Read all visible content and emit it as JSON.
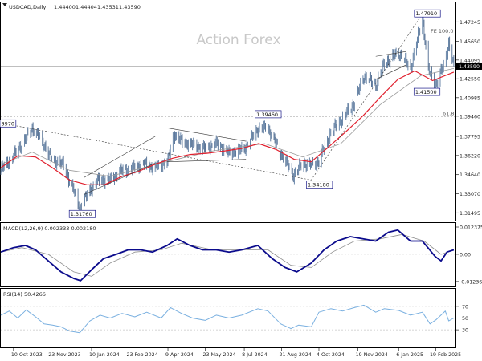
{
  "header": {
    "symbol_line": "USDCAD,Daily",
    "ohlc": [
      "1.44400",
      "1.44404",
      "1.43531",
      "1.43590"
    ]
  },
  "watermark": "Action Forex",
  "colors": {
    "bull_bar": "#5a7aa0",
    "bear_bar": "#4d6a8f",
    "sma": "#e0202e",
    "macd": "#0b0b8c",
    "signal": "#8f8f8f",
    "rsi": "#7ab0e0",
    "frame": "#000000",
    "box_border": "#1a1a8a",
    "price_tag": "#000000"
  },
  "chart_data": [
    {
      "type": "candlestick",
      "title": "USDCAD,Daily",
      "ylim": [
        1.3085,
        1.4885
      ],
      "y_ticks": [
        "1.47245",
        "1.45650",
        "1.44095",
        "1.42550",
        "1.40985",
        "1.39460",
        "1.37795",
        "1.36220",
        "1.34640",
        "1.33070",
        "1.31495"
      ],
      "current_price": "1.43590",
      "x_ticks": [
        "10 Oct 2023",
        "23 Nov 2023",
        "10 Jan 2024",
        "23 Feb 2024",
        "9 Apr 2024",
        "23 May 2024",
        "8 Jul 2024",
        "21 Aug 2024",
        "4 Oct 2024",
        "19 Nov 2024",
        "6 Jan 2025",
        "19 Feb 2025"
      ],
      "x_range": [
        "2023-09-25",
        "2025-03-14"
      ],
      "moving_average_red": [
        [
          "2023-09-25",
          1.352
        ],
        [
          "2023-10-15",
          1.362
        ],
        [
          "2023-11-05",
          1.361
        ],
        [
          "2023-11-25",
          1.352
        ],
        [
          "2023-12-15",
          1.342
        ],
        [
          "2024-01-05",
          1.338
        ],
        [
          "2024-01-25",
          1.338
        ],
        [
          "2024-02-15",
          1.345
        ],
        [
          "2024-03-05",
          1.349
        ],
        [
          "2024-03-25",
          1.355
        ],
        [
          "2024-04-15",
          1.36
        ],
        [
          "2024-05-05",
          1.363
        ],
        [
          "2024-05-25",
          1.364
        ],
        [
          "2024-06-15",
          1.366
        ],
        [
          "2024-07-05",
          1.368
        ],
        [
          "2024-07-25",
          1.372
        ],
        [
          "2024-08-15",
          1.367
        ],
        [
          "2024-09-05",
          1.359
        ],
        [
          "2024-09-25",
          1.357
        ],
        [
          "2024-10-15",
          1.369
        ],
        [
          "2024-11-05",
          1.382
        ],
        [
          "2024-11-25",
          1.395
        ],
        [
          "2024-12-15",
          1.41
        ],
        [
          "2025-01-05",
          1.425
        ],
        [
          "2025-01-25",
          1.432
        ],
        [
          "2025-02-15",
          1.424
        ],
        [
          "2025-03-12",
          1.431
        ]
      ],
      "path_close": [
        [
          "2023-09-25",
          1.35
        ],
        [
          "2023-10-10",
          1.362
        ],
        [
          "2023-10-24",
          1.376
        ],
        [
          "2023-11-01",
          1.385
        ],
        [
          "2023-11-15",
          1.371
        ],
        [
          "2023-11-23",
          1.36
        ],
        [
          "2023-12-07",
          1.355
        ],
        [
          "2023-12-19",
          1.335
        ],
        [
          "2023-12-27",
          1.318
        ],
        [
          "2024-01-08",
          1.334
        ],
        [
          "2024-01-18",
          1.342
        ],
        [
          "2024-02-01",
          1.342
        ],
        [
          "2024-02-12",
          1.349
        ],
        [
          "2024-02-28",
          1.352
        ],
        [
          "2024-03-12",
          1.355
        ],
        [
          "2024-03-25",
          1.352
        ],
        [
          "2024-04-09",
          1.358
        ],
        [
          "2024-04-16",
          1.38
        ],
        [
          "2024-04-25",
          1.374
        ],
        [
          "2024-05-08",
          1.371
        ],
        [
          "2024-05-23",
          1.368
        ],
        [
          "2024-06-05",
          1.372
        ],
        [
          "2024-06-20",
          1.364
        ],
        [
          "2024-07-08",
          1.368
        ],
        [
          "2024-07-24",
          1.384
        ],
        [
          "2024-08-05",
          1.385
        ],
        [
          "2024-08-20",
          1.364
        ],
        [
          "2024-09-04",
          1.346
        ],
        [
          "2024-09-15",
          1.356
        ],
        [
          "2024-09-25",
          1.354
        ],
        [
          "2024-10-04",
          1.358
        ],
        [
          "2024-10-18",
          1.381
        ],
        [
          "2024-11-01",
          1.393
        ],
        [
          "2024-11-15",
          1.406
        ],
        [
          "2024-11-26",
          1.428
        ],
        [
          "2024-12-10",
          1.42
        ],
        [
          "2024-12-20",
          1.438
        ],
        [
          "2025-01-06",
          1.447
        ],
        [
          "2025-01-20",
          1.434
        ],
        [
          "2025-02-03",
          1.476
        ],
        [
          "2025-02-10",
          1.433
        ],
        [
          "2025-02-19",
          1.421
        ],
        [
          "2025-02-28",
          1.436
        ],
        [
          "2025-03-06",
          1.455
        ],
        [
          "2025-03-12",
          1.436
        ]
      ],
      "moving_average_gray": [
        [
          "2023-09-25",
          1.355
        ],
        [
          "2023-11-01",
          1.365
        ],
        [
          "2023-12-15",
          1.35
        ],
        [
          "2024-02-01",
          1.345
        ],
        [
          "2024-04-01",
          1.356
        ],
        [
          "2024-06-01",
          1.366
        ],
        [
          "2024-08-01",
          1.372
        ],
        [
          "2024-09-15",
          1.361
        ],
        [
          "2024-10-30",
          1.372
        ],
        [
          "2024-12-15",
          1.404
        ],
        [
          "2025-02-01",
          1.428
        ],
        [
          "2025-03-12",
          1.434
        ]
      ],
      "annotations": [
        {
          "label": "1.47910",
          "date": "2025-02-03",
          "price": 1.4791
        },
        {
          "label": "1.41500",
          "date": "2025-02-12",
          "price": 1.415
        },
        {
          "label": "1.39460",
          "date": "2024-08-05",
          "price": 1.3946
        },
        {
          "label": "1.34180",
          "date": "2024-09-25",
          "price": 1.3418
        },
        {
          "label": "1.31760",
          "date": "2023-12-27",
          "price": 1.3176
        },
        {
          "label": "3970",
          "date": "2023-09-25",
          "price": 1.3897
        },
        {
          "label": "FE 100.0",
          "date": "2025-02-28",
          "price": 1.4625
        },
        {
          "label": "61.8",
          "date": "2025-02-28",
          "price": 1.3946
        }
      ],
      "guide_lines": {
        "fib_618_price": 1.3946,
        "left_dashed_price": 1.3897,
        "fe_100_price": 1.4625
      }
    },
    {
      "type": "line",
      "title": "MACD(12,26,9) 0.002333 0.002180",
      "ylim": [
        -0.0146,
        0.0142
      ],
      "y_ticks": [
        "0.012375",
        "0.00",
        "-0.012367"
      ],
      "series": [
        {
          "name": "MACD",
          "values": [
            [
              "2023-09-25",
              0.001
            ],
            [
              "2023-10-10",
              0.003
            ],
            [
              "2023-10-24",
              0.004
            ],
            [
              "2023-11-05",
              0.002
            ],
            [
              "2023-11-20",
              -0.003
            ],
            [
              "2023-12-05",
              -0.008
            ],
            [
              "2023-12-20",
              -0.011
            ],
            [
              "2023-12-28",
              -0.012
            ],
            [
              "2024-01-10",
              -0.007
            ],
            [
              "2024-01-24",
              -0.002
            ],
            [
              "2024-02-08",
              0.0
            ],
            [
              "2024-02-22",
              0.002
            ],
            [
              "2024-03-08",
              0.002
            ],
            [
              "2024-03-22",
              0.001
            ],
            [
              "2024-04-08",
              0.004
            ],
            [
              "2024-04-20",
              0.007
            ],
            [
              "2024-05-05",
              0.004
            ],
            [
              "2024-05-20",
              0.002
            ],
            [
              "2024-06-05",
              0.002
            ],
            [
              "2024-06-20",
              0.001
            ],
            [
              "2024-07-05",
              0.002
            ],
            [
              "2024-07-24",
              0.004
            ],
            [
              "2024-08-10",
              -0.002
            ],
            [
              "2024-08-25",
              -0.006
            ],
            [
              "2024-09-08",
              -0.008
            ],
            [
              "2024-09-25",
              -0.004
            ],
            [
              "2024-10-10",
              0.002
            ],
            [
              "2024-10-25",
              0.006
            ],
            [
              "2024-11-10",
              0.008
            ],
            [
              "2024-11-25",
              0.007
            ],
            [
              "2024-12-10",
              0.006
            ],
            [
              "2024-12-25",
              0.01
            ],
            [
              "2025-01-05",
              0.011
            ],
            [
              "2025-01-20",
              0.006
            ],
            [
              "2025-02-03",
              0.006
            ],
            [
              "2025-02-18",
              -0.001
            ],
            [
              "2025-02-25",
              -0.003
            ],
            [
              "2025-03-04",
              0.001
            ],
            [
              "2025-03-12",
              0.002
            ]
          ]
        },
        {
          "name": "Signal",
          "values": [
            [
              "2023-09-25",
              0.001
            ],
            [
              "2023-10-20",
              0.003
            ],
            [
              "2023-11-20",
              0.0
            ],
            [
              "2023-12-20",
              -0.008
            ],
            [
              "2024-01-10",
              -0.01
            ],
            [
              "2024-02-01",
              -0.004
            ],
            [
              "2024-03-01",
              0.001
            ],
            [
              "2024-04-01",
              0.002
            ],
            [
              "2024-04-25",
              0.005
            ],
            [
              "2024-06-01",
              0.002
            ],
            [
              "2024-07-10",
              0.002
            ],
            [
              "2024-08-05",
              0.002
            ],
            [
              "2024-09-01",
              -0.005
            ],
            [
              "2024-09-25",
              -0.006
            ],
            [
              "2024-10-20",
              0.001
            ],
            [
              "2024-11-15",
              0.006
            ],
            [
              "2024-12-15",
              0.007
            ],
            [
              "2025-01-10",
              0.009
            ],
            [
              "2025-02-05",
              0.006
            ],
            [
              "2025-02-25",
              0.0
            ],
            [
              "2025-03-12",
              0.002
            ]
          ]
        }
      ]
    },
    {
      "type": "line",
      "title": "RSI(14) 50.4266",
      "ylim": [
        0,
        100
      ],
      "y_ticks": [
        "70",
        "50",
        "30"
      ],
      "levels": [
        70,
        30
      ],
      "series": [
        {
          "name": "RSI",
          "values": [
            [
              "2023-09-25",
              55
            ],
            [
              "2023-10-05",
              62
            ],
            [
              "2023-10-15",
              50
            ],
            [
              "2023-10-25",
              64
            ],
            [
              "2023-11-05",
              52
            ],
            [
              "2023-11-15",
              40
            ],
            [
              "2023-11-25",
              38
            ],
            [
              "2023-12-05",
              35
            ],
            [
              "2023-12-15",
              28
            ],
            [
              "2023-12-27",
              25
            ],
            [
              "2024-01-08",
              45
            ],
            [
              "2024-01-20",
              55
            ],
            [
              "2024-02-01",
              50
            ],
            [
              "2024-02-15",
              58
            ],
            [
              "2024-03-01",
              52
            ],
            [
              "2024-03-15",
              60
            ],
            [
              "2024-04-01",
              50
            ],
            [
              "2024-04-12",
              68
            ],
            [
              "2024-04-25",
              58
            ],
            [
              "2024-05-08",
              50
            ],
            [
              "2024-05-23",
              46
            ],
            [
              "2024-06-05",
              55
            ],
            [
              "2024-06-20",
              50
            ],
            [
              "2024-07-05",
              55
            ],
            [
              "2024-07-24",
              66
            ],
            [
              "2024-08-05",
              62
            ],
            [
              "2024-08-20",
              40
            ],
            [
              "2024-09-01",
              32
            ],
            [
              "2024-09-10",
              38
            ],
            [
              "2024-09-25",
              35
            ],
            [
              "2024-10-04",
              60
            ],
            [
              "2024-10-18",
              66
            ],
            [
              "2024-11-01",
              62
            ],
            [
              "2024-11-15",
              68
            ],
            [
              "2024-11-26",
              72
            ],
            [
              "2024-12-10",
              60
            ],
            [
              "2024-12-20",
              66
            ],
            [
              "2025-01-06",
              63
            ],
            [
              "2025-01-20",
              55
            ],
            [
              "2025-02-03",
              60
            ],
            [
              "2025-02-12",
              40
            ],
            [
              "2025-02-19",
              47
            ],
            [
              "2025-03-02",
              62
            ],
            [
              "2025-03-06",
              45
            ],
            [
              "2025-03-12",
              50
            ]
          ]
        }
      ]
    }
  ]
}
